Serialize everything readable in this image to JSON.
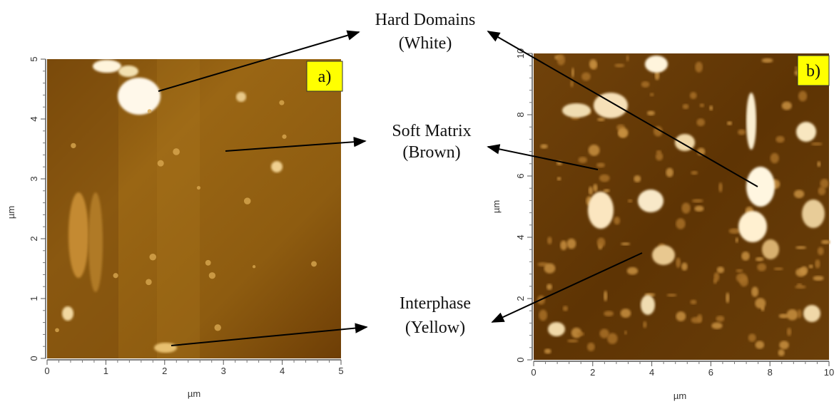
{
  "panels": [
    {
      "label": "a)",
      "x_label": "µm",
      "y_label": "µm",
      "x_ticks": [
        0,
        1,
        2,
        3,
        4,
        5
      ],
      "y_ticks": [
        0,
        1,
        2,
        3,
        4,
        5
      ]
    },
    {
      "label": "b)",
      "x_label": "µm",
      "y_label": "µm",
      "x_ticks": [
        0,
        2,
        4,
        6,
        8,
        10
      ],
      "y_ticks": [
        0,
        2,
        4,
        6,
        8,
        10
      ]
    }
  ],
  "annotations": [
    {
      "lines": [
        "Hard Domains",
        "(White)"
      ]
    },
    {
      "lines": [
        "Soft Matrix",
        "(Brown)"
      ]
    },
    {
      "lines": [
        "Interphase",
        "(Yellow)"
      ]
    }
  ]
}
